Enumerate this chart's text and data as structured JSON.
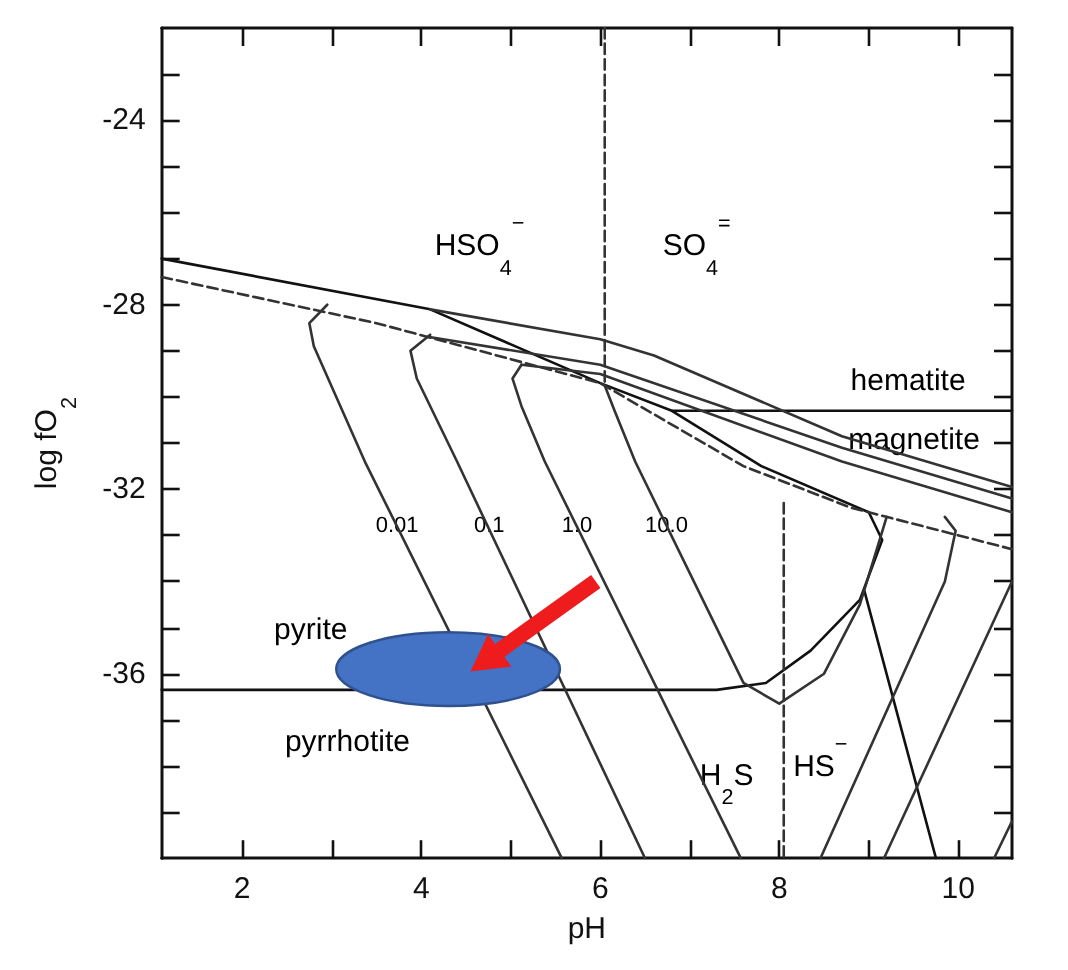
{
  "chart_data": {
    "type": "line",
    "xlabel": "pH",
    "ylabel": "log fO$_{2}$",
    "xlim": [
      1.1,
      10.6
    ],
    "ylim": [
      -40,
      -22
    ],
    "xticks": [
      2,
      {
        "value": 3,
        "label": null
      },
      4,
      {
        "value": 5,
        "label": null
      },
      6,
      {
        "value": 7,
        "label": null
      },
      8,
      {
        "value": 9,
        "label": null
      },
      10
    ],
    "yticks": [
      {
        "value": -39,
        "label": null
      },
      {
        "value": -38,
        "label": null
      },
      {
        "value": -37,
        "label": null
      },
      -36,
      {
        "value": -35,
        "label": null
      },
      {
        "value": -34,
        "label": null
      },
      {
        "value": -33,
        "label": null
      },
      -32,
      {
        "value": -31,
        "label": null
      },
      {
        "value": -30,
        "label": null
      },
      {
        "value": -29,
        "label": null
      },
      -28,
      {
        "value": -27,
        "label": null
      },
      {
        "value": -26,
        "label": null
      },
      {
        "value": -25,
        "label": null
      },
      -24,
      {
        "value": -23,
        "label": null
      }
    ],
    "grid": false,
    "marker": "none",
    "series": [
      {
        "color": "#111111",
        "x": [
          1.1,
          4.1,
          6.0,
          6.8,
          7.8,
          9.0,
          9.15,
          8.9,
          8.35,
          7.85,
          7.3,
          1.1
        ],
        "values": [
          -27.0,
          -28.1,
          -29.7,
          -30.3,
          -31.5,
          -32.5,
          -33.1,
          -34.4,
          -35.5,
          -36.2,
          -36.35,
          -36.35
        ]
      },
      {
        "color": "#111111",
        "x": [
          6.8,
          10.6
        ],
        "values": [
          -30.3,
          -30.3
        ]
      },
      {
        "color": "#111111",
        "x": [
          8.95,
          9.75
        ],
        "values": [
          -34.2,
          -40
        ]
      },
      {
        "color": "#333333",
        "line_style": "dashed",
        "x": [
          1.1,
          3.5,
          6.0,
          7.6,
          8.8,
          10.6
        ],
        "values": [
          -27.4,
          -28.4,
          -29.7,
          -31.5,
          -32.4,
          -33.3
        ]
      },
      {
        "color": "#333333",
        "x": [
          2.95,
          2.75,
          2.8,
          3.37,
          5.57
        ],
        "values": [
          -28.0,
          -28.4,
          -28.9,
          -31.4,
          -40
        ]
      },
      {
        "color": "#333333",
        "x": [
          4.1,
          3.88,
          3.95,
          4.4,
          6.5
        ],
        "values": [
          -28.65,
          -29.0,
          -29.6,
          -31.4,
          -40
        ]
      },
      {
        "color": "#333333",
        "x": [
          5.12,
          5.02,
          5.12,
          5.38,
          7.57
        ],
        "values": [
          -29.3,
          -29.6,
          -30.2,
          -31.4,
          -40
        ]
      },
      {
        "color": "#333333",
        "x": [
          6.05,
          6.16,
          6.39,
          7.6,
          8.0,
          8.5,
          8.9,
          9.2
        ],
        "values": [
          -29.75,
          -30.3,
          -31.4,
          -36.2,
          -36.65,
          -36.0,
          -34.5,
          -32.6
        ]
      },
      {
        "color": "#333333",
        "x": [
          8.46,
          9.85,
          9.97,
          9.85
        ],
        "values": [
          -40,
          -34.0,
          -32.9,
          -32.6
        ]
      },
      {
        "color": "#333333",
        "x": [
          9.17,
          10.6
        ],
        "values": [
          -40,
          -34.0
        ]
      },
      {
        "color": "#333333",
        "x": [
          10.4,
          10.6
        ],
        "values": [
          -40,
          -39.2
        ]
      },
      {
        "color": "#333333",
        "x": [
          4.1,
          6.0,
          6.6,
          8.7,
          10.6
        ],
        "values": [
          -28.1,
          -28.75,
          -29.1,
          -30.85,
          -31.95
        ]
      },
      {
        "color": "#333333",
        "x": [
          4.09,
          6.0,
          8.7,
          10.6
        ],
        "values": [
          -28.7,
          -29.3,
          -31.1,
          -32.2
        ]
      },
      {
        "color": "#333333",
        "x": [
          5.12,
          6.0,
          8.7,
          10.6
        ],
        "values": [
          -29.3,
          -29.5,
          -31.4,
          -32.5
        ]
      },
      {
        "color": "#333333",
        "line_style": "dashed",
        "x": [
          6.05,
          6.05
        ],
        "values": [
          -22,
          -29.7
        ]
      },
      {
        "color": "#333333",
        "line_style": "dashed",
        "x": [
          8.05,
          8.05
        ],
        "values": [
          -32.3,
          -40
        ]
      }
    ],
    "annotations": [
      "HSO$_{4}$$^{−}$",
      "SO$_{4}$$^{=}$",
      "hematite",
      "magnetite",
      {
        "text": "0.01",
        "x": 3.73,
        "y": -32.8
      },
      {
        "text": "0.1",
        "x": 4.76,
        "y": -32.8
      },
      {
        "text": "1.0",
        "x": 5.74,
        "y": -32.8
      },
      {
        "text": "10.0",
        "x": 6.74,
        "y": -32.8
      },
      "pyrite",
      "pyrrhotite",
      "H$_{2}$S",
      "HS$^{−}$"
    ]
  }
}
